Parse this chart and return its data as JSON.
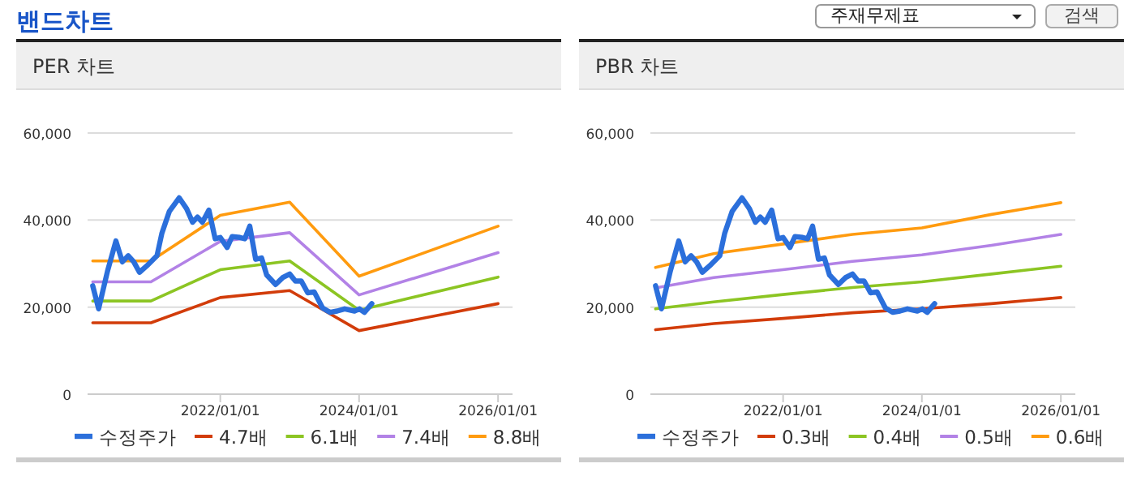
{
  "chart_data": [
    {
      "type": "line",
      "title": "PER 차트",
      "annotations": [
        "밴드차트",
        "주재무제표",
        "검색"
      ],
      "grid": "y",
      "legend": "bottom",
      "marker": "none",
      "line_style": "solid",
      "xlim": [
        "2020-02-03",
        "2026-03-01"
      ],
      "ylim": [
        0,
        60000
      ],
      "xticks": [
        {
          "value": "2022-01-01",
          "label": "2022/01/01"
        },
        {
          "value": "2024-01-01",
          "label": "2024/01/01"
        },
        {
          "value": "2026-01-01",
          "label": "2026/01/01"
        }
      ],
      "yticks": [
        {
          "value": 0,
          "label": "0"
        },
        {
          "value": 20000,
          "label": "20,000"
        },
        {
          "value": 40000,
          "label": "40,000"
        },
        {
          "value": 60000,
          "label": "60,000"
        }
      ],
      "series": [
        {
          "name": "수정주가",
          "color": "#2b6fdb",
          "x": [
            "2020-03-01",
            "2020-04-01",
            "2020-05-18",
            "2020-07-01",
            "2020-08-04",
            "2020-09-04",
            "2020-10-03",
            "2020-11-02",
            "2020-12-11",
            "2021-02-02",
            "2021-02-28",
            "2021-04-08",
            "2021-05-30",
            "2021-07-08",
            "2021-08-08",
            "2021-09-03",
            "2021-09-29",
            "2021-11-02",
            "2021-12-05",
            "2022-01-01",
            "2022-02-06",
            "2022-03-04",
            "2022-04-14",
            "2022-05-10",
            "2022-06-05",
            "2022-07-06",
            "2022-08-06",
            "2022-09-02",
            "2022-10-19",
            "2022-11-26",
            "2023-01-01",
            "2023-01-31",
            "2023-03-03",
            "2023-04-06",
            "2023-05-10",
            "2023-06-23",
            "2023-07-31",
            "2023-09-08",
            "2023-10-17",
            "2023-12-08",
            "2024-01-03",
            "2024-01-29",
            "2024-03-08"
          ],
          "values": [
            24900,
            19600,
            28300,
            35200,
            30400,
            31800,
            30400,
            28000,
            29500,
            31800,
            37000,
            42000,
            45100,
            42600,
            39500,
            40700,
            39500,
            42300,
            35700,
            36000,
            33700,
            36200,
            36000,
            35700,
            38600,
            31000,
            31300,
            27400,
            25200,
            26800,
            27600,
            26000,
            26000,
            23300,
            23500,
            19800,
            18800,
            19100,
            19600,
            19100,
            19600,
            18800,
            20800
          ]
        },
        {
          "name": "4.7배",
          "color": "#d23c0a",
          "x": [
            "2020-03-01",
            "2021-01-01",
            "2022-01-01",
            "2023-01-01",
            "2024-01-01",
            "2026-01-01"
          ],
          "values": [
            16400,
            16400,
            22200,
            23800,
            14600,
            20800
          ]
        },
        {
          "name": "6.1배",
          "color": "#8cc523",
          "x": [
            "2020-03-01",
            "2021-01-01",
            "2022-01-01",
            "2023-01-01",
            "2024-01-01",
            "2026-01-01"
          ],
          "values": [
            21400,
            21400,
            28600,
            30600,
            19300,
            26900
          ]
        },
        {
          "name": "7.4배",
          "color": "#b282e6",
          "x": [
            "2020-03-01",
            "2021-01-01",
            "2022-01-01",
            "2023-01-01",
            "2024-01-01",
            "2026-01-01"
          ],
          "values": [
            25800,
            25800,
            35100,
            37100,
            22800,
            32500
          ]
        },
        {
          "name": "8.8배",
          "color": "#ff9b0f",
          "x": [
            "2020-03-01",
            "2021-01-01",
            "2022-01-01",
            "2023-01-01",
            "2024-01-01",
            "2026-01-01"
          ],
          "values": [
            30600,
            30600,
            41100,
            44100,
            27100,
            38600
          ]
        }
      ]
    },
    {
      "type": "line",
      "title": "PBR 차트",
      "grid": "y",
      "legend": "bottom",
      "marker": "none",
      "line_style": "solid",
      "xlim": [
        "2020-02-03",
        "2026-03-01"
      ],
      "ylim": [
        0,
        60000
      ],
      "xticks": [
        {
          "value": "2022-01-01",
          "label": "2022/01/01"
        },
        {
          "value": "2024-01-01",
          "label": "2024/01/01"
        },
        {
          "value": "2026-01-01",
          "label": "2026/01/01"
        }
      ],
      "yticks": [
        {
          "value": 0,
          "label": "0"
        },
        {
          "value": 20000,
          "label": "20,000"
        },
        {
          "value": 40000,
          "label": "40,000"
        },
        {
          "value": 60000,
          "label": "60,000"
        }
      ],
      "series": [
        {
          "name": "수정주가",
          "color": "#2b6fdb",
          "x": [
            "2020-03-01",
            "2020-04-01",
            "2020-05-18",
            "2020-07-01",
            "2020-08-04",
            "2020-09-04",
            "2020-10-03",
            "2020-11-02",
            "2020-12-11",
            "2021-02-02",
            "2021-02-28",
            "2021-04-08",
            "2021-05-30",
            "2021-07-08",
            "2021-08-08",
            "2021-09-03",
            "2021-09-29",
            "2021-11-02",
            "2021-12-05",
            "2022-01-01",
            "2022-02-06",
            "2022-03-04",
            "2022-04-14",
            "2022-05-10",
            "2022-06-05",
            "2022-07-06",
            "2022-08-06",
            "2022-09-02",
            "2022-10-19",
            "2022-11-26",
            "2023-01-01",
            "2023-01-31",
            "2023-03-03",
            "2023-04-06",
            "2023-05-10",
            "2023-06-23",
            "2023-07-31",
            "2023-09-08",
            "2023-10-17",
            "2023-12-08",
            "2024-01-03",
            "2024-01-29",
            "2024-03-08"
          ],
          "values": [
            24900,
            19600,
            28300,
            35200,
            30400,
            31800,
            30400,
            28000,
            29500,
            31800,
            37000,
            42000,
            45100,
            42600,
            39500,
            40700,
            39500,
            42300,
            35700,
            36000,
            33700,
            36200,
            36000,
            35700,
            38600,
            31000,
            31300,
            27400,
            25200,
            26800,
            27600,
            26000,
            26000,
            23300,
            23500,
            19800,
            18800,
            19100,
            19600,
            19100,
            19600,
            18800,
            20800
          ]
        },
        {
          "name": "0.3배",
          "color": "#d23c0a",
          "x": [
            "2020-03-01",
            "2021-01-01",
            "2022-01-01",
            "2023-01-01",
            "2024-01-01",
            "2025-01-01",
            "2026-01-01"
          ],
          "values": [
            14800,
            16200,
            17400,
            18700,
            19600,
            20800,
            22200
          ]
        },
        {
          "name": "0.4배",
          "color": "#8cc523",
          "x": [
            "2020-03-01",
            "2021-01-01",
            "2022-01-01",
            "2023-01-01",
            "2024-01-01",
            "2025-01-01",
            "2026-01-01"
          ],
          "values": [
            19600,
            21200,
            22900,
            24500,
            25800,
            27600,
            29400
          ]
        },
        {
          "name": "0.5배",
          "color": "#b282e6",
          "x": [
            "2020-03-01",
            "2021-01-01",
            "2022-01-01",
            "2023-01-01",
            "2024-01-01",
            "2025-01-01",
            "2026-01-01"
          ],
          "values": [
            24400,
            26800,
            28600,
            30500,
            32000,
            34200,
            36700
          ]
        },
        {
          "name": "0.6배",
          "color": "#ff9b0f",
          "x": [
            "2020-03-01",
            "2021-01-01",
            "2022-01-01",
            "2023-01-01",
            "2024-01-01",
            "2025-01-01",
            "2026-01-01"
          ],
          "values": [
            29100,
            32300,
            34500,
            36700,
            38200,
            41300,
            44000
          ]
        }
      ]
    }
  ]
}
